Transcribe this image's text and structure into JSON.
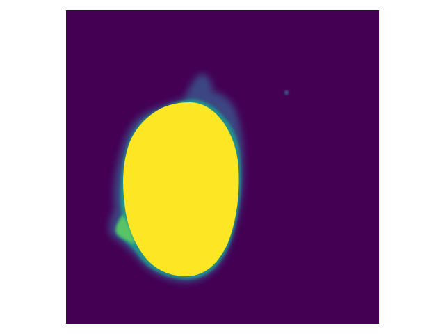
{
  "figure": {
    "kind": "segmentation-probability-map",
    "colormap": "viridis",
    "axes_visible": false,
    "colors": {
      "page_background": "#ffffff",
      "map_background": "#440154",
      "region_fill": "#fde725",
      "edge_teal": "#21918c",
      "edge_green": "#5ec962",
      "edge_blue": "#3b528b",
      "edge_purple": "#482878"
    }
  }
}
